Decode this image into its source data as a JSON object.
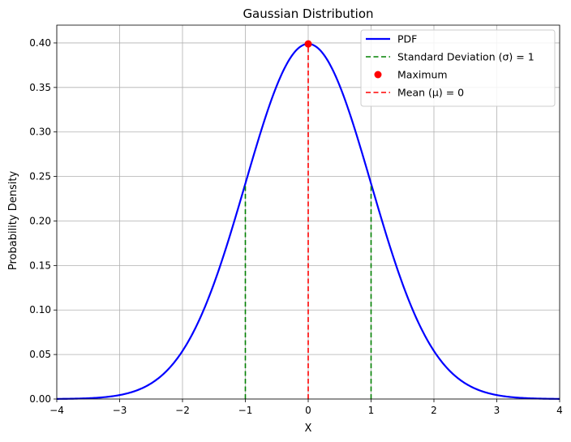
{
  "chart_data": {
    "type": "line",
    "title": "Gaussian Distribution",
    "xlabel": "X",
    "ylabel": "Probability Density",
    "xlim": [
      -4,
      4
    ],
    "ylim": [
      0,
      0.42
    ],
    "grid": true,
    "legend_position": "top-right",
    "x_ticks": [
      -4,
      -3,
      -2,
      -1,
      0,
      1,
      2,
      3,
      4
    ],
    "x_tick_labels": [
      "−4",
      "−3",
      "−2",
      "−1",
      "0",
      "1",
      "2",
      "3",
      "4"
    ],
    "y_ticks": [
      0,
      0.05,
      0.1,
      0.15,
      0.2,
      0.25,
      0.3,
      0.35,
      0.4
    ],
    "y_tick_labels": [
      "0.00",
      "0.05",
      "0.10",
      "0.15",
      "0.20",
      "0.25",
      "0.30",
      "0.35",
      "0.40"
    ],
    "series": [
      {
        "name": "PDF",
        "style": "solid",
        "color": "#0000ff",
        "x": [
          -4,
          -3.5,
          -3,
          -2.5,
          -2,
          -1.75,
          -1.5,
          -1.25,
          -1,
          -0.75,
          -0.5,
          -0.25,
          0,
          0.25,
          0.5,
          0.75,
          1,
          1.25,
          1.5,
          1.75,
          2,
          2.5,
          3,
          3.5,
          4
        ],
        "y": [
          0.0001,
          0.0009,
          0.0044,
          0.0175,
          0.054,
          0.0863,
          0.1295,
          0.1826,
          0.242,
          0.3011,
          0.3521,
          0.3867,
          0.3989,
          0.3867,
          0.3521,
          0.3011,
          0.242,
          0.1826,
          0.1295,
          0.0863,
          0.054,
          0.0175,
          0.0044,
          0.0009,
          0.0001
        ]
      },
      {
        "name": "Standard Deviation ($\\sigma$) = 1",
        "legend_label": "Standard Deviation (σ) = 1",
        "style": "dashed",
        "color": "#008000",
        "lines": [
          {
            "x": -1,
            "y0": 0,
            "y1": 0.242
          },
          {
            "x": 1,
            "y0": 0,
            "y1": 0.242
          }
        ]
      },
      {
        "name": "Maximum",
        "legend_label": "Maximum",
        "style": "marker",
        "color": "#ff0000",
        "points": [
          {
            "x": 0,
            "y": 0.3989
          }
        ]
      },
      {
        "name": "Mean ($\\mu$) = 0",
        "legend_label": "Mean (μ) = 0",
        "style": "dashed",
        "color": "#ff0000",
        "lines": [
          {
            "x": 0,
            "y0": 0,
            "y1": 0.3989
          }
        ]
      }
    ],
    "legend": [
      {
        "label": "PDF",
        "style": "solid",
        "color": "#0000ff"
      },
      {
        "label": "Standard Deviation (σ) = 1",
        "style": "dashed",
        "color": "#008000"
      },
      {
        "label": "Maximum",
        "style": "marker",
        "color": "#ff0000"
      },
      {
        "label": "Mean (μ) = 0",
        "style": "dashed",
        "color": "#ff0000"
      }
    ]
  }
}
